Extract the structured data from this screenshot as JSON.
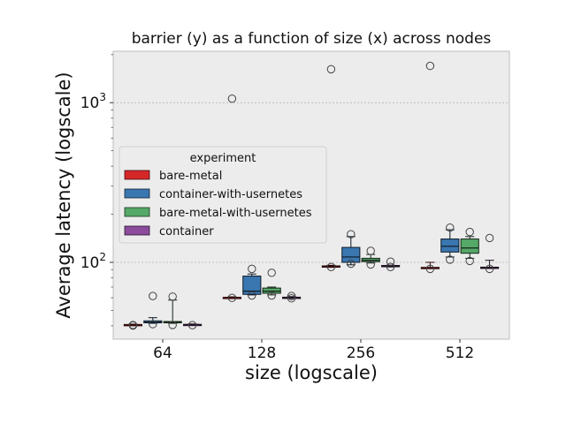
{
  "chart_data": {
    "type": "box",
    "title": "barrier (y) as a function of size (x) across nodes",
    "xlabel": "size (logscale)",
    "ylabel": "Average latency (logscale)",
    "yscale": "log",
    "ylim": [
      33,
      2100
    ],
    "y_ticks": [
      {
        "value": 100,
        "base": "10",
        "exp": "2"
      },
      {
        "value": 1000,
        "base": "10",
        "exp": "3"
      }
    ],
    "grid": true,
    "legend": {
      "title": "experiment",
      "placement": "center-left"
    },
    "categories": [
      "64",
      "128",
      "256",
      "512"
    ],
    "series": [
      {
        "name": "bare-metal",
        "color": "#d62728",
        "boxes": [
          {
            "min": 40.2,
            "q1": 40.4,
            "median": 40.6,
            "q3": 40.8,
            "max": 41.0,
            "outliers": [
              40.2,
              40.5
            ]
          },
          {
            "min": 59.5,
            "q1": 60.0,
            "median": 60.2,
            "q3": 60.4,
            "max": 60.8,
            "outliers": [
              59.9,
              1060
            ]
          },
          {
            "min": 93.0,
            "q1": 94.0,
            "median": 94.5,
            "q3": 95.0,
            "max": 95.8,
            "outliers": [
              93.5,
              1620
            ]
          },
          {
            "min": 91.5,
            "q1": 92.0,
            "median": 92.5,
            "q3": 93.0,
            "max": 100.0,
            "outliers": [
              91.0,
              1700
            ]
          }
        ]
      },
      {
        "name": "container-with-usernetes",
        "color": "#3a76af",
        "boxes": [
          {
            "min": 41.5,
            "q1": 41.8,
            "median": 42.2,
            "q3": 43.0,
            "max": 45.0,
            "outliers": [
              41.0,
              61.5
            ]
          },
          {
            "min": 62.5,
            "q1": 63.0,
            "median": 66.0,
            "q3": 82.0,
            "max": 84.5,
            "outliers": [
              62.0,
              91.0
            ]
          },
          {
            "min": 96.5,
            "q1": 100.0,
            "median": 108.0,
            "q3": 124.0,
            "max": 145.0,
            "outliers": [
              98.0,
              150.0
            ]
          },
          {
            "min": 108.0,
            "q1": 116.0,
            "median": 126.0,
            "q3": 140.0,
            "max": 160.0,
            "outliers": [
              104.0,
              165.0
            ]
          }
        ]
      },
      {
        "name": "bare-metal-with-usernetes",
        "color": "#55a868",
        "boxes": [
          {
            "min": 41.5,
            "q1": 41.8,
            "median": 42.1,
            "q3": 42.6,
            "max": 58.0,
            "outliers": [
              40.5,
              61.0
            ]
          },
          {
            "min": 62.5,
            "q1": 64.0,
            "median": 66.0,
            "q3": 69.0,
            "max": 70.0,
            "outliers": [
              62.0,
              86.0
            ]
          },
          {
            "min": 99.0,
            "q1": 101.0,
            "median": 103.0,
            "q3": 106.0,
            "max": 112.0,
            "outliers": [
              97.0,
              118.0
            ]
          },
          {
            "min": 106.0,
            "q1": 114.0,
            "median": 123.0,
            "q3": 140.0,
            "max": 145.0,
            "outliers": [
              102.0,
              155.0
            ]
          }
        ]
      },
      {
        "name": "container",
        "color": "#8b4c9b",
        "boxes": [
          {
            "min": 40.3,
            "q1": 40.5,
            "median": 40.7,
            "q3": 40.9,
            "max": 41.1,
            "outliers": [
              40.4
            ]
          },
          {
            "min": 59.6,
            "q1": 59.9,
            "median": 60.2,
            "q3": 60.5,
            "max": 61.0,
            "outliers": [
              59.5,
              61.5
            ]
          },
          {
            "min": 93.5,
            "q1": 94.5,
            "median": 95.0,
            "q3": 95.6,
            "max": 96.0,
            "outliers": [
              93.5,
              101.0
            ]
          },
          {
            "min": 91.5,
            "q1": 92.2,
            "median": 92.7,
            "q3": 93.3,
            "max": 103.0,
            "outliers": [
              91.0,
              142.0
            ]
          }
        ]
      }
    ]
  }
}
